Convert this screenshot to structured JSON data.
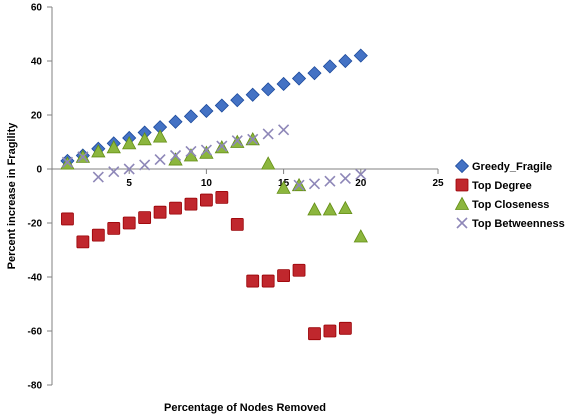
{
  "chart_data": {
    "type": "scatter",
    "xlabel": "Percentage of Nodes Removed",
    "ylabel": "Percent increase in Fragility",
    "xlim": [
      0,
      25
    ],
    "ylim": [
      -80,
      60
    ],
    "xticks": [
      0,
      5,
      10,
      15,
      20,
      25
    ],
    "yticks": [
      -80,
      -60,
      -40,
      -20,
      0,
      20,
      40,
      60
    ],
    "grid": false,
    "legend_position": "right",
    "series": [
      {
        "name": "Greedy_Fragile",
        "marker": "diamond",
        "color": "#4472C4",
        "points": [
          [
            1,
            3
          ],
          [
            2,
            5
          ],
          [
            3,
            7.5
          ],
          [
            4,
            9.5
          ],
          [
            5,
            11.5
          ],
          [
            6,
            13.5
          ],
          [
            7,
            15.5
          ],
          [
            8,
            17.5
          ],
          [
            9,
            19.5
          ],
          [
            10,
            21.5
          ],
          [
            11,
            23.5
          ],
          [
            12,
            25.5
          ],
          [
            13,
            27.5
          ],
          [
            14,
            29.5
          ],
          [
            15,
            31.5
          ],
          [
            16,
            33.5
          ],
          [
            17,
            35.5
          ],
          [
            18,
            38
          ],
          [
            19,
            40
          ],
          [
            20,
            42
          ]
        ]
      },
      {
        "name": "Top Degree",
        "marker": "square",
        "color": "#C0272D",
        "points": [
          [
            1,
            -18.5
          ],
          [
            2,
            -27
          ],
          [
            3,
            -24.5
          ],
          [
            4,
            -22
          ],
          [
            5,
            -20
          ],
          [
            6,
            -18
          ],
          [
            7,
            -16
          ],
          [
            8,
            -14.5
          ],
          [
            9,
            -13
          ],
          [
            10,
            -11.5
          ],
          [
            11,
            -10.5
          ],
          [
            12,
            -20.5
          ],
          [
            13,
            -41.5
          ],
          [
            14,
            -41.5
          ],
          [
            15,
            -39.5
          ],
          [
            16,
            -37.5
          ],
          [
            17,
            -61
          ],
          [
            18,
            -60
          ],
          [
            19,
            -59
          ]
        ]
      },
      {
        "name": "Top Closeness",
        "marker": "triangle",
        "color": "#8CB63E",
        "points": [
          [
            1,
            2
          ],
          [
            2,
            4.5
          ],
          [
            3,
            6.5
          ],
          [
            4,
            8
          ],
          [
            5,
            9.5
          ],
          [
            6,
            11
          ],
          [
            7,
            12
          ],
          [
            8,
            3.5
          ],
          [
            9,
            5
          ],
          [
            10,
            6
          ],
          [
            11,
            8
          ],
          [
            12,
            10
          ],
          [
            13,
            11
          ],
          [
            14,
            2
          ],
          [
            15,
            -7
          ],
          [
            16,
            -6
          ],
          [
            17,
            -15
          ],
          [
            18,
            -15
          ],
          [
            19,
            -14.5
          ],
          [
            20,
            -25
          ]
        ]
      },
      {
        "name": "Top Betweenness",
        "marker": "x",
        "color": "#8E87B8",
        "points": [
          [
            1,
            2.5
          ],
          [
            2,
            4.5
          ],
          [
            3,
            -3
          ],
          [
            4,
            -1
          ],
          [
            5,
            0
          ],
          [
            6,
            1.5
          ],
          [
            7,
            3.5
          ],
          [
            8,
            5
          ],
          [
            9,
            6.5
          ],
          [
            10,
            7
          ],
          [
            11,
            8.5
          ],
          [
            12,
            10.5
          ],
          [
            13,
            11
          ],
          [
            14,
            13
          ],
          [
            15,
            14.5
          ],
          [
            16,
            -6
          ],
          [
            17,
            -5.5
          ],
          [
            18,
            -4.5
          ],
          [
            19,
            -3.5
          ],
          [
            20,
            -2
          ]
        ]
      }
    ]
  }
}
